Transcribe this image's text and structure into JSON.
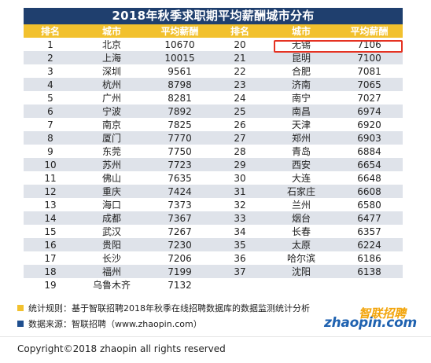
{
  "title": "2018年秋季求职期平均薪酬城市分布",
  "headers": [
    "排名",
    "城市",
    "平均薪酬",
    "排名",
    "城市",
    "平均薪酬"
  ],
  "left_rows": [
    {
      "rank": "1",
      "city": "北京",
      "salary": "10670"
    },
    {
      "rank": "2",
      "city": "上海",
      "salary": "10015"
    },
    {
      "rank": "3",
      "city": "深圳",
      "salary": "9561"
    },
    {
      "rank": "4",
      "city": "杭州",
      "salary": "8798"
    },
    {
      "rank": "5",
      "city": "广州",
      "salary": "8281"
    },
    {
      "rank": "6",
      "city": "宁波",
      "salary": "7892"
    },
    {
      "rank": "7",
      "city": "南京",
      "salary": "7825"
    },
    {
      "rank": "8",
      "city": "厦门",
      "salary": "7770"
    },
    {
      "rank": "9",
      "city": "东莞",
      "salary": "7750"
    },
    {
      "rank": "10",
      "city": "苏州",
      "salary": "7723"
    },
    {
      "rank": "11",
      "city": "佛山",
      "salary": "7635"
    },
    {
      "rank": "12",
      "city": "重庆",
      "salary": "7424"
    },
    {
      "rank": "13",
      "city": "海口",
      "salary": "7373"
    },
    {
      "rank": "14",
      "city": "成都",
      "salary": "7367"
    },
    {
      "rank": "15",
      "city": "武汉",
      "salary": "7267"
    },
    {
      "rank": "16",
      "city": "贵阳",
      "salary": "7230"
    },
    {
      "rank": "17",
      "city": "长沙",
      "salary": "7206"
    },
    {
      "rank": "18",
      "city": "福州",
      "salary": "7199"
    },
    {
      "rank": "19",
      "city": "乌鲁木齐",
      "salary": "7132"
    }
  ],
  "right_rows": [
    {
      "rank": "20",
      "city": "无锡",
      "salary": "7106"
    },
    {
      "rank": "21",
      "city": "昆明",
      "salary": "7100"
    },
    {
      "rank": "22",
      "city": "合肥",
      "salary": "7081"
    },
    {
      "rank": "23",
      "city": "济南",
      "salary": "7065"
    },
    {
      "rank": "24",
      "city": "南宁",
      "salary": "7027"
    },
    {
      "rank": "25",
      "city": "南昌",
      "salary": "6974"
    },
    {
      "rank": "26",
      "city": "天津",
      "salary": "6920"
    },
    {
      "rank": "27",
      "city": "郑州",
      "salary": "6903"
    },
    {
      "rank": "28",
      "city": "青岛",
      "salary": "6884"
    },
    {
      "rank": "29",
      "city": "西安",
      "salary": "6654"
    },
    {
      "rank": "30",
      "city": "大连",
      "salary": "6648"
    },
    {
      "rank": "31",
      "city": "石家庄",
      "salary": "6608"
    },
    {
      "rank": "32",
      "city": "兰州",
      "salary": "6580"
    },
    {
      "rank": "33",
      "city": "烟台",
      "salary": "6477"
    },
    {
      "rank": "34",
      "city": "长春",
      "salary": "6357"
    },
    {
      "rank": "35",
      "city": "太原",
      "salary": "6224"
    },
    {
      "rank": "36",
      "city": "哈尔滨",
      "salary": "6186"
    },
    {
      "rank": "37",
      "city": "沈阳",
      "salary": "6138"
    }
  ],
  "notes": {
    "rule": "统计规则：基于智联招聘2018年秋季在线招聘数据库的数据监测统计分析",
    "source": "数据来源：智联招聘（www.zhaopin.com）"
  },
  "logo": {
    "cn": "智联招聘",
    "en": "zhaopin.com"
  },
  "copyright": "Copyright©2018 zhaopin all rights reserved",
  "colors": {
    "title_bg": "#1f3f6e",
    "header_bg": "#f2c12e",
    "row_alt_bg": "#dfe3ea",
    "highlight": "#e53222",
    "note_rule_square": "#f2c12e",
    "note_source_square": "#1f4f8f",
    "logo_orange": "#f2a40a",
    "logo_blue": "#1f62b0"
  }
}
